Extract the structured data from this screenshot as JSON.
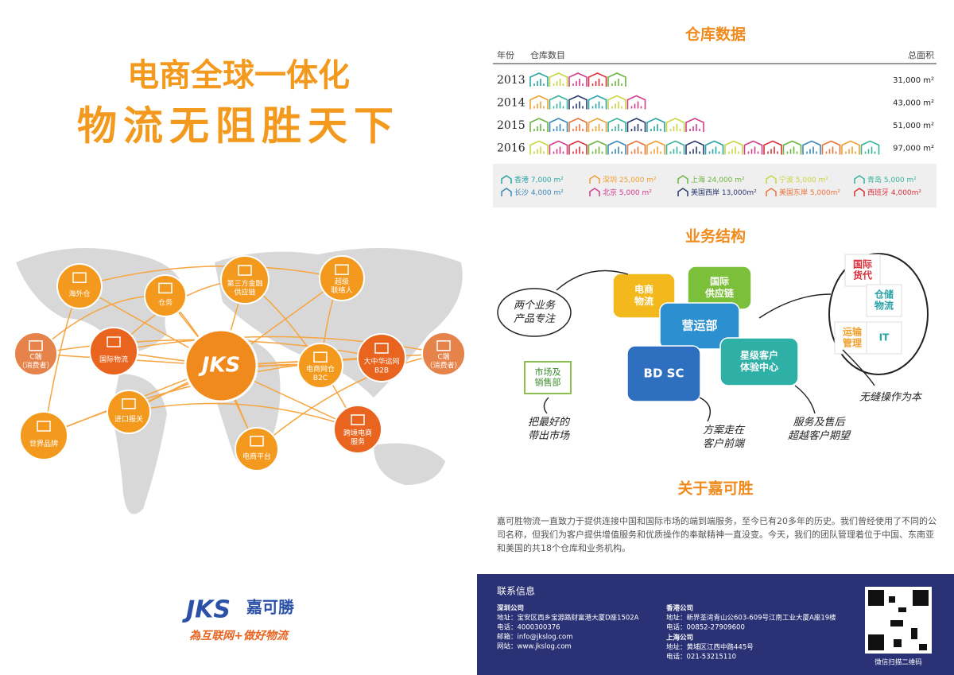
{
  "left": {
    "title_line1": "电商全球一体化",
    "title_line2": "物流无阻胜天下",
    "hub": "JKS",
    "nodes": [
      {
        "lines": [
          "海外仓"
        ]
      },
      {
        "lines": [
          "仓务"
        ]
      },
      {
        "lines": [
          "第三方金融",
          "供应链"
        ]
      },
      {
        "lines": [
          "超级",
          "联络人"
        ]
      },
      {
        "lines": [
          "C端",
          "（消费者）"
        ]
      },
      {
        "lines": [
          "国际物流"
        ]
      },
      {
        "lines": [
          "电商网仓",
          "B2C"
        ]
      },
      {
        "lines": [
          "大中华运网",
          "B2B"
        ]
      },
      {
        "lines": [
          "C端",
          "（消费者）"
        ]
      },
      {
        "lines": [
          "进口报关"
        ]
      },
      {
        "lines": [
          "世界品牌"
        ]
      },
      {
        "lines": [
          "电商平台"
        ]
      },
      {
        "lines": [
          "跨境电商",
          "服务"
        ]
      }
    ],
    "logo": {
      "mark": "JKS",
      "name": "嘉可勝",
      "slogan": "為互联网+做好物流"
    }
  },
  "warehouse": {
    "title": "仓库数据",
    "headers": [
      "年份",
      "仓库数目",
      "总面积"
    ],
    "rows": [
      {
        "year": "2013",
        "count": 5,
        "area": "31,000 m²"
      },
      {
        "year": "2014",
        "count": 6,
        "area": "43,000 m²"
      },
      {
        "year": "2015",
        "count": 9,
        "area": "51,000 m²"
      },
      {
        "year": "2016",
        "count": 18,
        "area": "97,000 m²"
      }
    ],
    "legend": [
      {
        "name": "香港",
        "area": "7,000 m²",
        "color": "#2aa3a6"
      },
      {
        "name": "深圳",
        "area": "25,000 m²",
        "color": "#f0a030"
      },
      {
        "name": "上海",
        "area": "24,000 m²",
        "color": "#6db33f"
      },
      {
        "name": "宁波",
        "area": "5,000 m²",
        "color": "#c9d640"
      },
      {
        "name": "青岛",
        "area": "5,000 m²",
        "color": "#37b39a"
      },
      {
        "name": "长沙",
        "area": "4,000 m²",
        "color": "#3b88b8"
      },
      {
        "name": "北京",
        "area": "5,000 m²",
        "color": "#d33b8c"
      },
      {
        "name": "美国西岸",
        "area": "13,000m²",
        "color": "#2d3a6e"
      },
      {
        "name": "美国东岸",
        "area": "5,000m²",
        "color": "#e8743b"
      },
      {
        "name": "西班牙",
        "area": "4,000m²",
        "color": "#d9303a"
      }
    ]
  },
  "business": {
    "title": "业务结构",
    "pieces": [
      {
        "lines": [
          "电商",
          "物流"
        ]
      },
      {
        "lines": [
          "国际",
          "供应链"
        ]
      },
      {
        "lines": [
          "营运部"
        ]
      },
      {
        "lines": [
          "BD SC"
        ]
      },
      {
        "lines": [
          "星级客户",
          "体验中心"
        ]
      }
    ],
    "side": {
      "lines": [
        "市场及",
        "销售部"
      ]
    },
    "circle": [
      {
        "lines": [
          "国际",
          "货代"
        ]
      },
      {
        "lines": [
          "仓储",
          "物流"
        ]
      },
      {
        "lines": [
          "运输",
          "管理"
        ]
      },
      {
        "lines": [
          "IT"
        ]
      }
    ],
    "notes": [
      {
        "lines": [
          "两个业务",
          "产品专注"
        ]
      },
      {
        "lines": [
          "把最好的",
          "带出市场"
        ]
      },
      {
        "lines": [
          "方案走在",
          "客户前端"
        ]
      },
      {
        "lines": [
          "服务及售后",
          "超越客户期望"
        ]
      },
      {
        "lines": [
          "无缝操作为本"
        ]
      }
    ]
  },
  "about": {
    "title": "关于嘉可胜",
    "text": "嘉可胜物流一直致力于提供连接中国和国际市场的端到端服务，至今已有20多年的历史。我们曾经使用了不同的公司名称，但我们为客户提供增值服务和优质操作的奉献精神一直没变。今天，我们的团队管理着位于中国、东南亚和美国的共18个仓库和业务机构。"
  },
  "contact": {
    "title": "联系信息",
    "offices": [
      {
        "name": "深圳公司",
        "lines": [
          "地址：宝安区西乡宝源路财富港大厦D座1502A",
          "电话：4000300376",
          "邮箱：info@jkslog.com",
          "网站：www.jkslog.com"
        ]
      },
      {
        "name": "香港公司",
        "lines": [
          "地址：新界荃湾青山公603-609号江南工业大厦A座19楼",
          "电话：00852-27909600"
        ]
      },
      {
        "name": "上海公司",
        "lines": [
          "地址：黄埔区江西中路445号",
          "电话：021-53215110"
        ]
      }
    ],
    "qr_caption": "微信扫描二维码"
  }
}
